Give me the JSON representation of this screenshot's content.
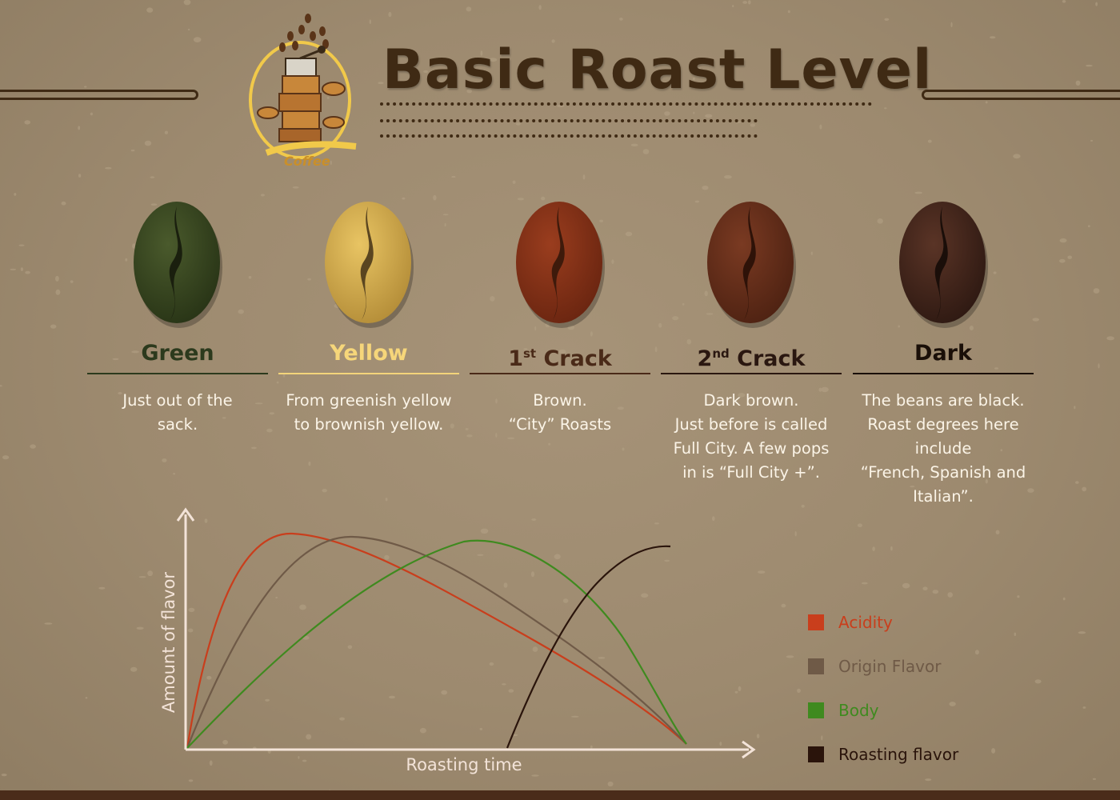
{
  "header": {
    "title": "Basic Roast Level",
    "logo_text": "Coffee"
  },
  "stages": [
    {
      "key": "green",
      "name": "Green",
      "sup": "",
      "name_color": "#2c3a1d",
      "line_color": "#2c3a1d",
      "desc_lines": [
        "Just out of the",
        "sack."
      ],
      "bean": {
        "base": "#4a5a2c",
        "shade": "#283416",
        "crease": "#1a1f0e"
      }
    },
    {
      "key": "yellow",
      "name": "Yellow",
      "sup": "",
      "name_color": "#f6d67a",
      "line_color": "#f3d47a",
      "desc_lines": [
        "From greenish yellow",
        "to brownish yellow."
      ],
      "bean": {
        "base": "#e8c463",
        "shade": "#b48d38",
        "crease": "#5a4520"
      }
    },
    {
      "key": "first-crack",
      "name": "1",
      "sup": "st",
      "name_suffix": " Crack",
      "name_color": "#4a2a18",
      "line_color": "#4a2a18",
      "desc_lines": [
        "Brown.",
        "“City” Roasts"
      ],
      "bean": {
        "base": "#9a3d1e",
        "shade": "#6a2510",
        "crease": "#3e1a0b"
      }
    },
    {
      "key": "second-crack",
      "name": "2",
      "sup": "nd",
      "name_suffix": " Crack",
      "name_color": "#2a1710",
      "line_color": "#2a1710",
      "desc_lines": [
        "Dark brown.",
        "Just before is called",
        "Full City. A few pops",
        "in is “Full City +”."
      ],
      "bean": {
        "base": "#7a3a22",
        "shade": "#4e2212",
        "crease": "#2e1208"
      }
    },
    {
      "key": "dark",
      "name": "Dark",
      "sup": "",
      "name_color": "#1a0f08",
      "line_color": "#1a0f08",
      "desc_lines": [
        "The beans are black.",
        "Roast degrees here",
        "include",
        "“French, Spanish and",
        "Italian”."
      ],
      "bean": {
        "base": "#5a3426",
        "shade": "#2e1912",
        "crease": "#1a0e09"
      }
    }
  ],
  "chart_data": {
    "type": "line",
    "xlabel": "Roasting time",
    "ylabel": "Amount of flavor",
    "axis_color": "#f3e3d8",
    "series": [
      {
        "name": "Acidity",
        "color": "#c93e1c"
      },
      {
        "name": "Origin Flavor",
        "color": "#6f5a47"
      },
      {
        "name": "Body",
        "color": "#3f8a1f"
      },
      {
        "name": "Roasting flavor",
        "color": "#2a140b"
      }
    ],
    "legend_position": "right"
  }
}
